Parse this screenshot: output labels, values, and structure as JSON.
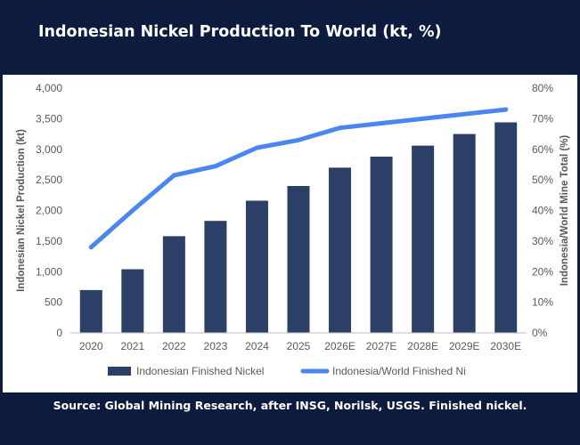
{
  "header": {
    "title": "Indonesian Nickel Production To World (kt, %)"
  },
  "footer": {
    "source": "Source: Global Mining Research, after INSG, Norilsk, USGS. Finished nickel."
  },
  "chart_data": {
    "type": "bar",
    "title": "Indonesian Nickel Production To World (kt, %)",
    "categories": [
      "2020",
      "2021",
      "2022",
      "2023",
      "2024",
      "2025",
      "2026E",
      "2027E",
      "2028E",
      "2029E",
      "2030E"
    ],
    "series": [
      {
        "name": "Indonesian Finished Nickel",
        "type": "bar",
        "axis": "left",
        "color": "#2c3f66",
        "values": [
          700,
          1040,
          1580,
          1830,
          2160,
          2400,
          2700,
          2880,
          3060,
          3250,
          3440
        ]
      },
      {
        "name": "Indonesia/World Finished Ni",
        "type": "line",
        "axis": "right",
        "color": "#4a86f0",
        "values": [
          28,
          40,
          51.5,
          54.5,
          60.5,
          63,
          67,
          68.5,
          70,
          71.5,
          73
        ]
      }
    ],
    "ylabel": "Indonesian Nickel Production (kt)",
    "ylim": [
      0,
      4000
    ],
    "yticks": [
      "0",
      "500",
      "1,000",
      "1,500",
      "2,000",
      "2,500",
      "3,000",
      "3,500",
      "4,000"
    ],
    "y2label": "Indonesia/World Mine Total (%)",
    "y2lim": [
      0,
      80
    ],
    "y2ticks": [
      "0%",
      "10%",
      "20%",
      "30%",
      "40%",
      "50%",
      "60%",
      "70%",
      "80%"
    ],
    "grid": false,
    "legend_position": "bottom"
  }
}
